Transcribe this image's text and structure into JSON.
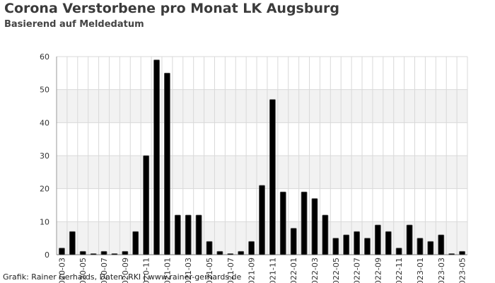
{
  "chart_data": {
    "type": "bar",
    "title": "Corona Verstorbene pro Monat LK Augsburg",
    "subtitle": "Basierend auf Meldedatum",
    "xlabel": "",
    "ylabel": "",
    "ylim": [
      0,
      60
    ],
    "yticks": [
      0,
      10,
      20,
      30,
      40,
      50,
      60
    ],
    "grid": true,
    "bar_color": "#000000",
    "band_color": "#f2f2f2",
    "grid_color": "#d9d9d9",
    "categories": [
      "2020-03",
      "2020-04",
      "2020-05",
      "2020-06",
      "2020-07",
      "2020-08",
      "2020-09",
      "2020-10",
      "2020-11",
      "2020-12",
      "2021-01",
      "2021-02",
      "2021-03",
      "2021-04",
      "2021-05",
      "2021-06",
      "2021-07",
      "2021-08",
      "2021-09",
      "2021-10",
      "2021-11",
      "2021-12",
      "2022-01",
      "2022-02",
      "2022-03",
      "2022-04",
      "2022-05",
      "2022-06",
      "2022-07",
      "2022-08",
      "2022-09",
      "2022-10",
      "2022-11",
      "2022-12",
      "2023-01",
      "2023-02",
      "2023-03",
      "2023-04",
      "2023-05"
    ],
    "tick_labels": [
      "2020-03",
      "2020-05",
      "2020-07",
      "2020-09",
      "2020-11",
      "2021-01",
      "2021-03",
      "2021-05",
      "2021-07",
      "2021-09",
      "2021-11",
      "2022-01",
      "2022-03",
      "2022-05",
      "2022-07",
      "2022-09",
      "2022-11",
      "2023-01",
      "2023-03",
      "2023-05"
    ],
    "values": [
      2,
      7,
      1,
      0,
      1,
      0,
      1,
      7,
      30,
      59,
      55,
      12,
      12,
      12,
      4,
      1,
      0,
      1,
      4,
      21,
      47,
      19,
      8,
      19,
      17,
      12,
      5,
      6,
      7,
      5,
      9,
      7,
      2,
      9,
      5,
      4,
      6,
      0,
      1
    ]
  },
  "footer": {
    "credit": "Grafik: Rainer Gerhards, Daten: RKI | www.rainer-gerhards.de"
  }
}
